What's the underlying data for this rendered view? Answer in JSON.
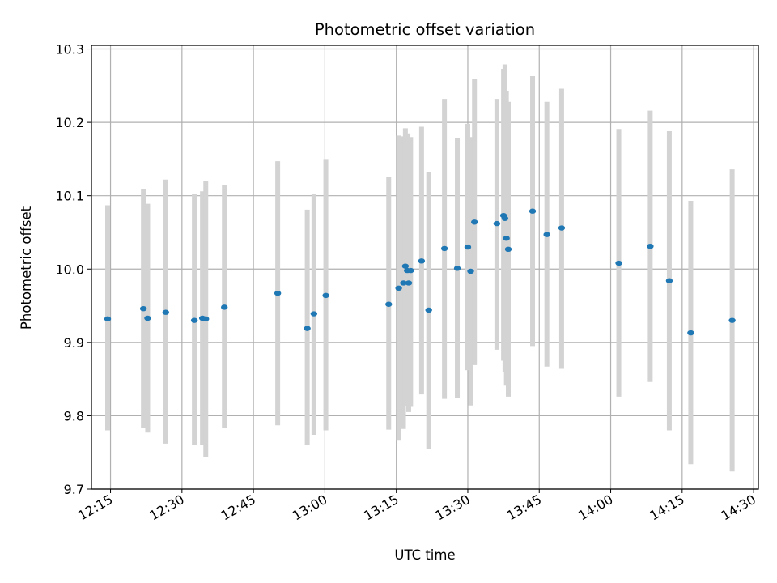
{
  "chart_data": {
    "type": "scatter",
    "title": "Photometric offset variation",
    "xlabel": "UTC time",
    "ylabel": "Photometric offset",
    "x_unit": "UTC time (HH:MM)",
    "xlim": [
      "12:11",
      "14:31"
    ],
    "ylim": [
      9.7,
      10.305
    ],
    "grid": true,
    "marker_color": "#1f77b4",
    "errorbar_color": "#d3d3d3",
    "x_ticks": [
      "12:15",
      "12:30",
      "12:45",
      "13:00",
      "13:15",
      "13:30",
      "13:45",
      "14:00",
      "14:15",
      "14:30"
    ],
    "y_ticks": [
      9.7,
      9.8,
      9.9,
      10.0,
      10.1,
      10.2,
      10.3
    ],
    "y_tick_labels": [
      "9.7",
      "9.8",
      "9.9",
      "10.0",
      "10.1",
      "10.2",
      "10.3"
    ],
    "points": [
      {
        "x": "12:14:24",
        "y": 9.932,
        "low": 9.78,
        "high": 10.087
      },
      {
        "x": "12:21:54",
        "y": 9.946,
        "low": 9.783,
        "high": 10.109
      },
      {
        "x": "12:22:48",
        "y": 9.933,
        "low": 9.777,
        "high": 10.089
      },
      {
        "x": "12:26:36",
        "y": 9.941,
        "low": 9.762,
        "high": 10.122
      },
      {
        "x": "12:32:36",
        "y": 9.93,
        "low": 9.76,
        "high": 10.102
      },
      {
        "x": "12:34:18",
        "y": 9.933,
        "low": 9.76,
        "high": 10.106
      },
      {
        "x": "12:35:00",
        "y": 9.932,
        "low": 9.744,
        "high": 10.12
      },
      {
        "x": "12:38:54",
        "y": 9.948,
        "low": 9.783,
        "high": 10.114
      },
      {
        "x": "12:50:06",
        "y": 9.967,
        "low": 9.787,
        "high": 10.147
      },
      {
        "x": "12:56:18",
        "y": 9.919,
        "low": 9.76,
        "high": 10.081
      },
      {
        "x": "12:57:42",
        "y": 9.939,
        "low": 9.774,
        "high": 10.103
      },
      {
        "x": "13:00:12",
        "y": 9.964,
        "low": 9.78,
        "high": 10.15
      },
      {
        "x": "13:13:24",
        "y": 9.952,
        "low": 9.781,
        "high": 10.125
      },
      {
        "x": "13:15:30",
        "y": 9.974,
        "low": 9.766,
        "high": 10.182
      },
      {
        "x": "13:16:30",
        "y": 9.981,
        "low": 9.782,
        "high": 10.181
      },
      {
        "x": "13:16:54",
        "y": 10.004,
        "low": 9.813,
        "high": 10.192
      },
      {
        "x": "13:17:18",
        "y": 9.998,
        "low": 9.813,
        "high": 10.185
      },
      {
        "x": "13:17:36",
        "y": 9.981,
        "low": 9.805,
        "high": 10.16
      },
      {
        "x": "13:18:00",
        "y": 9.998,
        "low": 9.812,
        "high": 10.18
      },
      {
        "x": "13:20:18",
        "y": 10.011,
        "low": 9.829,
        "high": 10.194
      },
      {
        "x": "13:21:48",
        "y": 9.944,
        "low": 9.755,
        "high": 10.132
      },
      {
        "x": "13:25:06",
        "y": 10.028,
        "low": 9.823,
        "high": 10.232
      },
      {
        "x": "13:27:48",
        "y": 10.001,
        "low": 9.824,
        "high": 10.178
      },
      {
        "x": "13:30:00",
        "y": 10.03,
        "low": 9.862,
        "high": 10.198
      },
      {
        "x": "13:30:36",
        "y": 9.997,
        "low": 9.814,
        "high": 10.18
      },
      {
        "x": "13:31:24",
        "y": 10.064,
        "low": 9.869,
        "high": 10.259
      },
      {
        "x": "13:36:06",
        "y": 10.062,
        "low": 9.89,
        "high": 10.232
      },
      {
        "x": "13:37:30",
        "y": 10.073,
        "low": 9.875,
        "high": 10.273
      },
      {
        "x": "13:37:48",
        "y": 10.069,
        "low": 9.86,
        "high": 10.279
      },
      {
        "x": "13:38:06",
        "y": 10.042,
        "low": 9.841,
        "high": 10.243
      },
      {
        "x": "13:38:30",
        "y": 10.027,
        "low": 9.826,
        "high": 10.228
      },
      {
        "x": "13:43:36",
        "y": 10.079,
        "low": 9.895,
        "high": 10.263
      },
      {
        "x": "13:46:36",
        "y": 10.047,
        "low": 9.867,
        "high": 10.228
      },
      {
        "x": "13:49:42",
        "y": 10.056,
        "low": 9.864,
        "high": 10.246
      },
      {
        "x": "14:01:42",
        "y": 10.008,
        "low": 9.826,
        "high": 10.191
      },
      {
        "x": "14:08:18",
        "y": 10.031,
        "low": 9.846,
        "high": 10.216
      },
      {
        "x": "14:12:18",
        "y": 9.984,
        "low": 9.78,
        "high": 10.188
      },
      {
        "x": "14:16:48",
        "y": 9.913,
        "low": 9.734,
        "high": 10.093
      },
      {
        "x": "14:25:30",
        "y": 9.93,
        "low": 9.724,
        "high": 10.136
      }
    ]
  }
}
